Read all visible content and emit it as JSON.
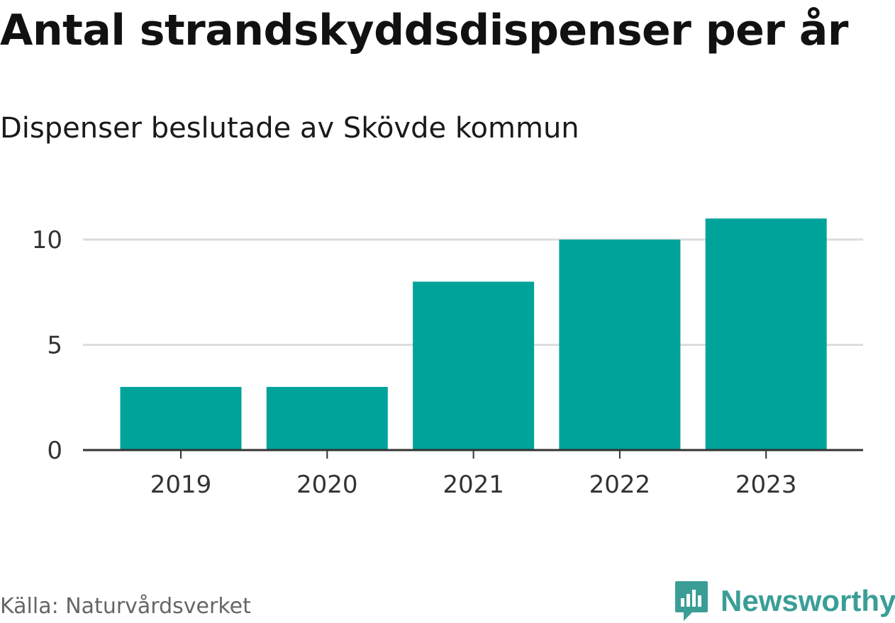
{
  "title": "Antal strandskyddsdispenser per år",
  "subtitle": "Dispenser beslutade av Skövde kommun",
  "source": "Källa: Naturvårdsverket",
  "brand": {
    "name": "Newsworthy",
    "icon": "newsworthy-logo-icon",
    "color": "#3a9e97"
  },
  "chart_data": {
    "type": "bar",
    "title": "Antal strandskyddsdispenser per år",
    "subtitle": "Dispenser beslutade av Skövde kommun",
    "xlabel": "",
    "ylabel": "",
    "categories": [
      "2019",
      "2020",
      "2021",
      "2022",
      "2023"
    ],
    "values": [
      3,
      3,
      8,
      10,
      11
    ],
    "ylim": [
      0,
      11
    ],
    "yticks": [
      0,
      5,
      10
    ],
    "grid": true,
    "bar_color": "#00a39a",
    "grid_color": "#dddddd",
    "axis_color": "#333333"
  }
}
